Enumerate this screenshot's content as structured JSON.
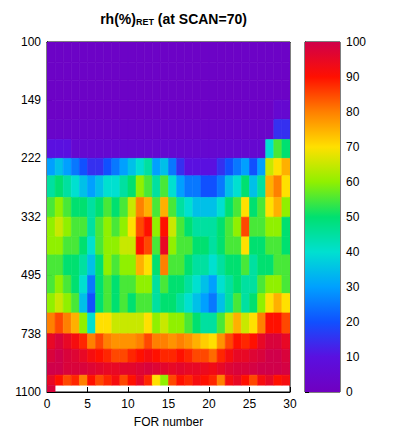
{
  "chart_data": {
    "type": "heatmap",
    "title": "rh(%)",
    "title_subscript": "RET",
    "title_note": "(at SCAN=70)",
    "x_label": "FOR number",
    "xlim": [
      0,
      30
    ],
    "xticks": [
      0,
      5,
      10,
      15,
      20,
      25,
      30
    ],
    "ylim": [
      1100,
      100
    ],
    "yticks": [
      100,
      149,
      222,
      332,
      495,
      738,
      1100
    ],
    "log": "y",
    "grid": false,
    "x_edges": [
      0,
      1,
      2,
      3,
      4,
      5,
      6,
      7,
      8,
      9,
      10,
      11,
      12,
      13,
      14,
      15,
      16,
      17,
      18,
      19,
      20,
      21,
      22,
      23,
      24,
      25,
      26,
      27,
      28,
      29,
      30
    ],
    "y_edges": [
      100,
      115,
      130,
      149,
      170,
      195,
      222,
      250,
      290,
      332,
      380,
      430,
      495,
      560,
      640,
      738,
      820,
      900,
      980,
      1050,
      1100
    ],
    "cells": [
      [
        2,
        2,
        2,
        2,
        2,
        2,
        2,
        2,
        2,
        2,
        2,
        2,
        2,
        2,
        2,
        2,
        2,
        2,
        2,
        2,
        2,
        2,
        2,
        2,
        2,
        2,
        2,
        2,
        2,
        2
      ],
      [
        2,
        2,
        2,
        2,
        2,
        2,
        2,
        2,
        2,
        2,
        2,
        2,
        2,
        2,
        2,
        2,
        2,
        2,
        2,
        2,
        2,
        2,
        2,
        2,
        2,
        2,
        2,
        2,
        2,
        2
      ],
      [
        2,
        2,
        2,
        2,
        2,
        2,
        2,
        2,
        2,
        2,
        2,
        2,
        2,
        2,
        2,
        2,
        2,
        2,
        2,
        2,
        2,
        2,
        2,
        2,
        2,
        2,
        2,
        2,
        2,
        2
      ],
      [
        2,
        2,
        2,
        2,
        2,
        2,
        2,
        2,
        2,
        2,
        2,
        2,
        2,
        2,
        2,
        2,
        2,
        2,
        2,
        2,
        2,
        2,
        2,
        2,
        2,
        2,
        2,
        2,
        5,
        5
      ],
      [
        3,
        3,
        3,
        3,
        3,
        3,
        3,
        3,
        3,
        3,
        3,
        3,
        3,
        3,
        3,
        3,
        3,
        3,
        3,
        3,
        3,
        3,
        3,
        3,
        3,
        3,
        3,
        3,
        15,
        15
      ],
      [
        10,
        10,
        10,
        5,
        5,
        5,
        5,
        5,
        5,
        5,
        5,
        5,
        5,
        5,
        5,
        5,
        5,
        5,
        5,
        5,
        5,
        5,
        5,
        5,
        5,
        5,
        5,
        40,
        55,
        50
      ],
      [
        30,
        35,
        30,
        25,
        20,
        15,
        15,
        20,
        25,
        30,
        35,
        40,
        45,
        30,
        35,
        25,
        15,
        10,
        10,
        10,
        10,
        15,
        20,
        25,
        30,
        20,
        30,
        65,
        70,
        75
      ],
      [
        45,
        50,
        45,
        40,
        35,
        30,
        35,
        40,
        40,
        45,
        50,
        60,
        55,
        45,
        55,
        40,
        30,
        25,
        25,
        20,
        20,
        25,
        35,
        40,
        50,
        35,
        45,
        75,
        80,
        70
      ],
      [
        55,
        60,
        55,
        50,
        50,
        45,
        50,
        55,
        50,
        55,
        65,
        80,
        75,
        55,
        75,
        55,
        45,
        40,
        35,
        35,
        35,
        40,
        50,
        55,
        70,
        50,
        55,
        70,
        75,
        60
      ],
      [
        60,
        65,
        60,
        55,
        55,
        45,
        55,
        60,
        55,
        60,
        70,
        85,
        90,
        60,
        90,
        65,
        55,
        50,
        45,
        45,
        45,
        50,
        55,
        60,
        85,
        55,
        55,
        60,
        60,
        50
      ],
      [
        60,
        60,
        55,
        55,
        50,
        40,
        55,
        60,
        60,
        65,
        65,
        90,
        85,
        55,
        95,
        60,
        55,
        55,
        50,
        50,
        45,
        50,
        55,
        55,
        70,
        50,
        50,
        55,
        55,
        50
      ],
      [
        55,
        55,
        50,
        50,
        45,
        35,
        50,
        60,
        55,
        60,
        60,
        75,
        70,
        50,
        80,
        55,
        55,
        50,
        45,
        45,
        40,
        45,
        50,
        50,
        55,
        45,
        50,
        50,
        55,
        55
      ],
      [
        55,
        60,
        55,
        50,
        40,
        25,
        50,
        55,
        50,
        55,
        55,
        60,
        60,
        45,
        55,
        50,
        50,
        45,
        40,
        35,
        30,
        40,
        45,
        50,
        45,
        45,
        55,
        60,
        60,
        55
      ],
      [
        60,
        65,
        60,
        55,
        35,
        20,
        50,
        55,
        50,
        55,
        50,
        55,
        55,
        45,
        50,
        50,
        45,
        40,
        35,
        30,
        25,
        35,
        45,
        55,
        45,
        50,
        60,
        70,
        75,
        70
      ],
      [
        80,
        85,
        80,
        75,
        60,
        40,
        70,
        70,
        65,
        65,
        65,
        65,
        70,
        60,
        65,
        60,
        60,
        55,
        50,
        45,
        45,
        55,
        65,
        75,
        65,
        70,
        80,
        90,
        90,
        85
      ],
      [
        95,
        98,
        95,
        92,
        88,
        80,
        85,
        80,
        78,
        78,
        78,
        80,
        85,
        80,
        80,
        78,
        80,
        78,
        75,
        72,
        70,
        78,
        85,
        90,
        88,
        90,
        95,
        98,
        98,
        95
      ],
      [
        98,
        100,
        98,
        97,
        95,
        92,
        90,
        88,
        85,
        85,
        88,
        90,
        92,
        90,
        88,
        88,
        90,
        88,
        85,
        85,
        82,
        88,
        92,
        95,
        95,
        97,
        98,
        100,
        100,
        98
      ],
      [
        100,
        100,
        98,
        98,
        98,
        97,
        96,
        95,
        95,
        96,
        96,
        97,
        98,
        97,
        96,
        95,
        96,
        95,
        95,
        94,
        93,
        95,
        97,
        98,
        98,
        99,
        100,
        100,
        100,
        99
      ],
      [
        95,
        90,
        85,
        88,
        80,
        90,
        85,
        88,
        92,
        85,
        90,
        95,
        88,
        70,
        60,
        85,
        90,
        88,
        92,
        90,
        88,
        80,
        92,
        95,
        90,
        85,
        92,
        95,
        90,
        92
      ],
      [
        98,
        null,
        null,
        null,
        null,
        null,
        null,
        null,
        null,
        null,
        null,
        null,
        null,
        null,
        null,
        null,
        null,
        null,
        null,
        null,
        null,
        null,
        null,
        null,
        null,
        null,
        null,
        null,
        null,
        null
      ]
    ],
    "colorbar_range": [
      0,
      100
    ],
    "colorbar_ticks": [
      0,
      10,
      20,
      30,
      40,
      50,
      60,
      70,
      80,
      90,
      100
    ]
  }
}
